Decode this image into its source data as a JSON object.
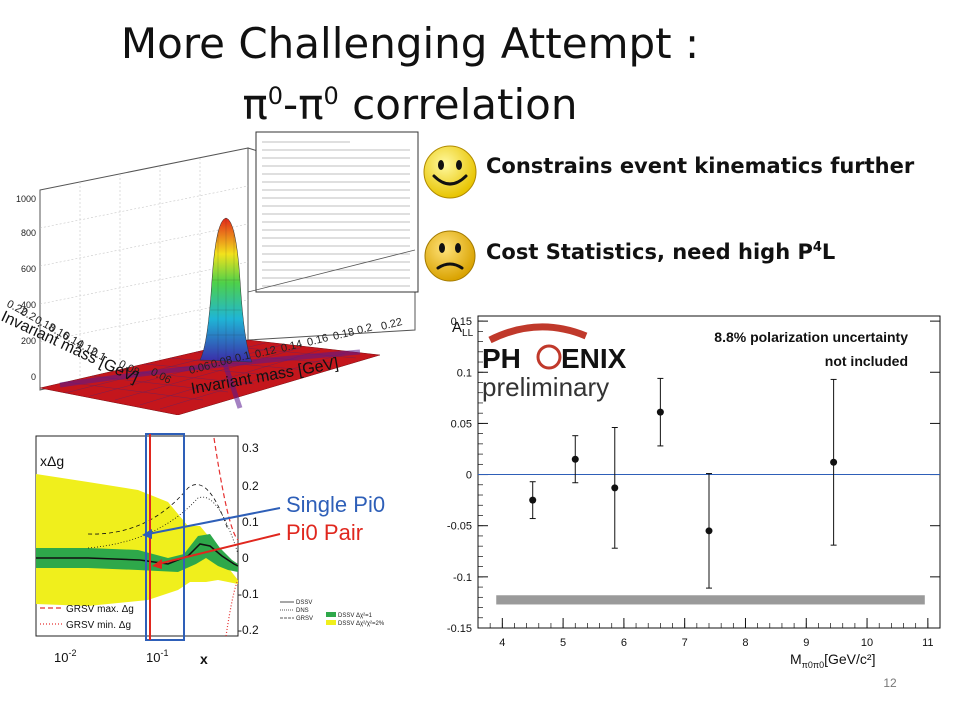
{
  "slide": {
    "title_line1": "More Challenging Attempt :",
    "title_line2_mid": "-",
    "title_line2_word": "correlation",
    "pi_symbol": "π",
    "pi_sup": "0",
    "page_number": "12"
  },
  "bullets": [
    {
      "icon": "happy-smiley-icon",
      "text": "Constrains event kinematics further"
    },
    {
      "icon": "sad-smiley-icon",
      "text_pre": "Cost Statistics, need high P",
      "text_sup": "4",
      "text_post": "L"
    }
  ],
  "surface_plot": {
    "x_axis_title": "Invariant mass [GeV]",
    "y_axis_title": "Invariant mass [GeV]",
    "z_ticks": [
      "1000",
      "800",
      "600",
      "400",
      "200",
      "0"
    ],
    "x_ticks": [
      "0.06",
      "0.08",
      "0.1",
      "0.12",
      "0.14",
      "0.16",
      "0.18",
      "0.2",
      "0.22"
    ],
    "y_ticks": [
      "0.22",
      "0.2",
      "0.18",
      "0.16",
      "0.14",
      "0.12",
      "0.1",
      "0.08",
      "0.06"
    ]
  },
  "theory_plot": {
    "ylabel": "xΔg",
    "y_ticks": [
      "0.3",
      "0.2",
      "0.1",
      "0",
      "-0.1",
      "-0.2"
    ],
    "x_tick_left_base": "10",
    "x_tick_left_exp": "-2",
    "x_tick_right_base": "10",
    "x_tick_right_exp": "-1",
    "xlabel": "x",
    "annotation_single": "Single Pi0",
    "annotation_pair": "Pi0 Pair",
    "legend_left": [
      "GRSV max. Δg",
      "GRSV min. Δg"
    ],
    "legend_right_lines": [
      "DSSV",
      "DNS",
      "GRSV"
    ],
    "legend_right_bands": [
      "DSSV Δχ²=1",
      "DSSV Δχ²/χ²=2%"
    ]
  },
  "colors": {
    "single_pi0": "#2e5fb8",
    "pi0_pair": "#e0271e",
    "yellow_band": "#f0ef1c",
    "green_band": "#2ea84a",
    "phenix_red": "#c0392b"
  },
  "chart_data": {
    "type": "scatter",
    "title": "",
    "ylabel": "A_LL",
    "xlabel": "M",
    "xlabel_sub": "π0π0",
    "xlabel_unit": "[GeV/c²]",
    "xlim": [
      3.6,
      11.2
    ],
    "ylim": [
      -0.15,
      0.155
    ],
    "x_ticks": [
      4,
      5,
      6,
      7,
      8,
      9,
      10,
      11
    ],
    "y_ticks": [
      0.15,
      0.1,
      0.05,
      0,
      -0.05,
      -0.1,
      -0.15
    ],
    "y_tick_labels": [
      "0.15",
      "0.1",
      "0.05",
      "0",
      "-0.05",
      "-0.1",
      "-0.15"
    ],
    "x_tick_labels": [
      "4",
      "5",
      "6",
      "7",
      "8",
      "9",
      "10",
      "11"
    ],
    "series": [
      {
        "points": [
          {
            "x": 4.5,
            "y": -0.025,
            "err": 0.018
          },
          {
            "x": 5.2,
            "y": 0.015,
            "err": 0.023
          },
          {
            "x": 5.85,
            "y": -0.013,
            "err": 0.059
          },
          {
            "x": 6.6,
            "y": 0.061,
            "err": 0.033
          },
          {
            "x": 7.4,
            "y": -0.055,
            "err": 0.056
          },
          {
            "x": 9.45,
            "y": 0.012,
            "err": 0.081
          }
        ]
      }
    ],
    "systematic_band": {
      "x_start": 3.9,
      "x_end": 10.95,
      "y_low": -0.127,
      "y_high": -0.118
    },
    "annotation_line1": "8.8% polarization uncertainty",
    "annotation_line2": "not included",
    "logo_text_left": "PH",
    "logo_text_right": "ENIX",
    "logo_sub": "preliminary"
  }
}
